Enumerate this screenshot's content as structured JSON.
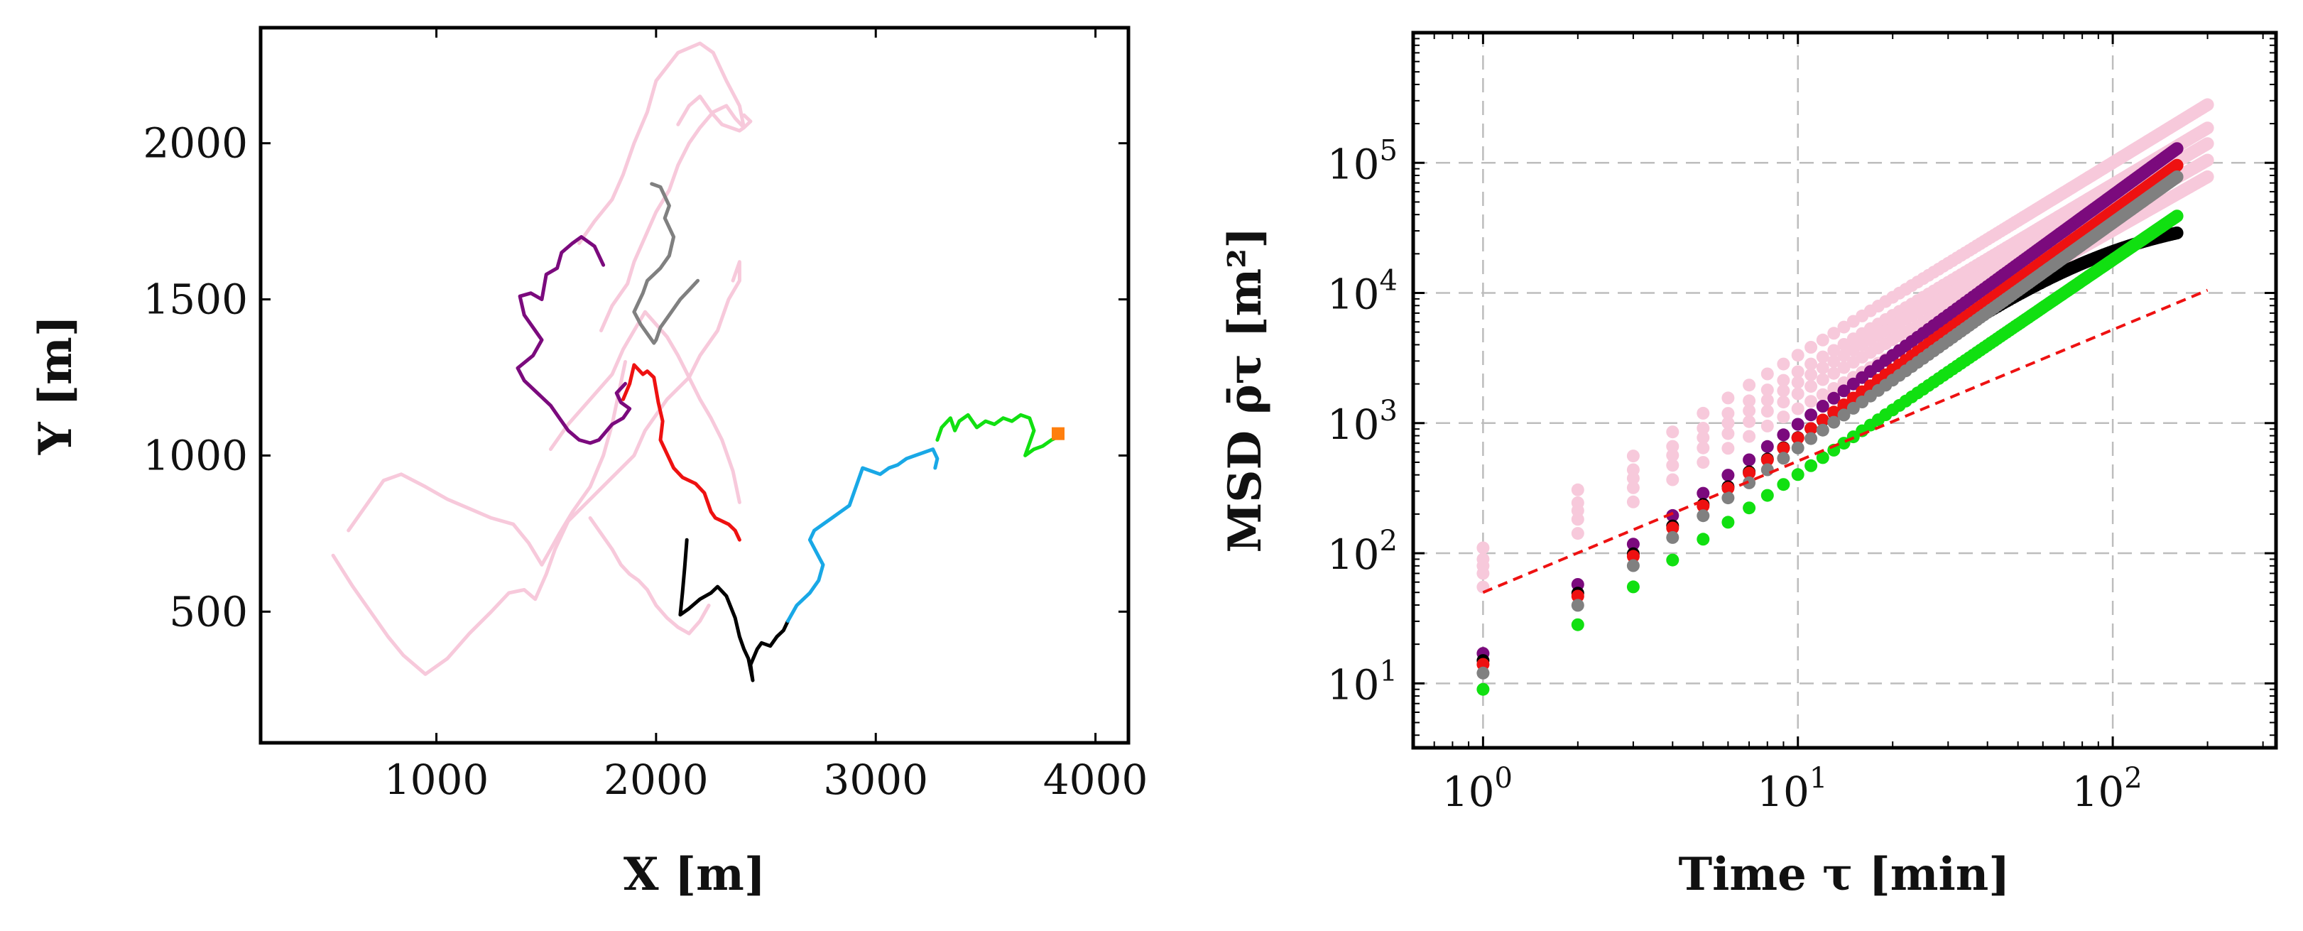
{
  "chart_data": [
    {
      "type": "line",
      "title": "",
      "xlabel": "X [m]",
      "ylabel": "Y [m]",
      "xlim": [
        200,
        4150
      ],
      "ylim": [
        80,
        2370
      ],
      "xticks": [
        1000,
        2000,
        3000,
        4000
      ],
      "yticks": [
        500,
        1000,
        1500,
        2000
      ],
      "xtick_labels": [
        "1000",
        "2000",
        "3000",
        "4000"
      ],
      "ytick_labels": [
        "500",
        "1000",
        "1500",
        "2000"
      ],
      "grid": false,
      "colors": {
        "pink": "#f7c9db",
        "purple": "#7b0a7d",
        "red": "#ee1111",
        "gray": "#808080",
        "black": "#000000",
        "blue": "#19a8e6",
        "green": "#11e011",
        "orange": "#ff7f0e"
      },
      "series": [
        {
          "name": "pink-1",
          "color": "#f7c9db",
          "x": [
            530,
            620,
            700,
            780,
            850,
            950,
            1050,
            1150,
            1250,
            1330,
            1400,
            1450,
            1500,
            1540,
            1600,
            1700,
            1800,
            1900,
            1950,
            2050,
            2150,
            2200,
            2280,
            2330,
            2380,
            2380,
            2350
          ],
          "y": [
            680,
            580,
            500,
            420,
            360,
            300,
            350,
            430,
            500,
            560,
            570,
            540,
            620,
            700,
            790,
            860,
            930,
            1000,
            1080,
            1180,
            1250,
            1320,
            1400,
            1500,
            1560,
            1620,
            1560
          ]
        },
        {
          "name": "pink-2",
          "color": "#f7c9db",
          "x": [
            600,
            700,
            760,
            840,
            950,
            1050,
            1150,
            1250,
            1350,
            1420,
            1480,
            1520,
            1560,
            1620,
            1700,
            1760,
            1800,
            1830,
            1860
          ],
          "y": [
            760,
            860,
            920,
            940,
            900,
            860,
            830,
            800,
            780,
            720,
            650,
            700,
            750,
            820,
            900,
            1000,
            1100,
            1200,
            1300
          ]
        },
        {
          "name": "pink-3",
          "color": "#f7c9db",
          "x": [
            1650,
            1720,
            1800,
            1850,
            1900,
            1960,
            2000,
            2100,
            2200,
            2260,
            2320,
            2380,
            2400,
            2380,
            2300,
            2250,
            2200,
            2150,
            2100
          ],
          "y": [
            1680,
            1750,
            1820,
            1900,
            2000,
            2100,
            2200,
            2290,
            2320,
            2290,
            2200,
            2120,
            2050,
            2040,
            2060,
            2100,
            2150,
            2120,
            2060
          ]
        },
        {
          "name": "pink-4",
          "color": "#f7c9db",
          "x": [
            1750,
            1800,
            1870,
            1900,
            1950,
            2000,
            2060,
            2100,
            2150,
            2200,
            2260,
            2320,
            2360,
            2400,
            2430,
            2400
          ],
          "y": [
            1400,
            1480,
            1550,
            1620,
            1700,
            1780,
            1850,
            1930,
            2000,
            2050,
            2100,
            2120,
            2080,
            2050,
            2070,
            2090
          ]
        },
        {
          "name": "pink-5",
          "color": "#f7c9db",
          "x": [
            1520,
            1600,
            1700,
            1800,
            1850,
            1900,
            1950,
            2000,
            2050,
            2100,
            2150,
            2200,
            2250,
            2300,
            2350,
            2380
          ],
          "y": [
            1020,
            1100,
            1180,
            1260,
            1340,
            1400,
            1460,
            1420,
            1380,
            1320,
            1250,
            1180,
            1120,
            1050,
            950,
            850
          ]
        },
        {
          "name": "pink-6",
          "color": "#f7c9db",
          "x": [
            1700,
            1760,
            1800,
            1840,
            1880,
            1920,
            1960,
            2000,
            2050,
            2100,
            2150,
            2200,
            2240
          ],
          "y": [
            800,
            740,
            700,
            650,
            620,
            600,
            570,
            520,
            480,
            450,
            430,
            470,
            520
          ]
        },
        {
          "name": "purple",
          "color": "#7b0a7d",
          "x": [
            1760,
            1720,
            1660,
            1620,
            1570,
            1550,
            1500,
            1480,
            1430,
            1380,
            1400,
            1450,
            1480,
            1440,
            1370,
            1400,
            1460,
            1520,
            1560,
            1600,
            1650,
            1700,
            1740,
            1800,
            1850,
            1880,
            1840,
            1820,
            1860
          ],
          "y": [
            1610,
            1670,
            1700,
            1680,
            1650,
            1600,
            1580,
            1500,
            1520,
            1510,
            1450,
            1400,
            1370,
            1320,
            1280,
            1240,
            1200,
            1160,
            1120,
            1080,
            1050,
            1040,
            1050,
            1100,
            1120,
            1150,
            1170,
            1200,
            1230
          ]
        },
        {
          "name": "gray",
          "color": "#808080",
          "x": [
            1980,
            2020,
            2060,
            2040,
            2080,
            2060,
            2020,
            1990,
            1960,
            1940,
            1900,
            1930,
            1960,
            1990,
            2000,
            2020,
            2050,
            2080,
            2110,
            2150,
            2190
          ],
          "y": [
            1870,
            1860,
            1800,
            1760,
            1700,
            1640,
            1600,
            1580,
            1560,
            1520,
            1460,
            1420,
            1390,
            1360,
            1370,
            1410,
            1440,
            1470,
            1500,
            1530,
            1560
          ]
        },
        {
          "name": "red",
          "color": "#ee1111",
          "x": [
            1850,
            1880,
            1900,
            1940,
            1960,
            1990,
            2010,
            2030,
            2020,
            2060,
            2080,
            2120,
            2180,
            2220,
            2250,
            2270,
            2300,
            2330,
            2360,
            2380
          ],
          "y": [
            1180,
            1230,
            1290,
            1260,
            1270,
            1250,
            1170,
            1110,
            1050,
            990,
            960,
            930,
            910,
            880,
            820,
            800,
            790,
            780,
            760,
            730
          ]
        },
        {
          "name": "black",
          "color": "#000000",
          "x": [
            2140,
            2130,
            2120,
            2110,
            2150,
            2200,
            2250,
            2280,
            2320,
            2360,
            2380,
            2400,
            2420,
            2440,
            2430,
            2460,
            2480,
            2520,
            2550,
            2580,
            2600
          ],
          "y": [
            730,
            640,
            560,
            490,
            510,
            540,
            560,
            580,
            550,
            480,
            420,
            380,
            350,
            280,
            330,
            380,
            400,
            390,
            420,
            440,
            470
          ]
        },
        {
          "name": "blue",
          "color": "#19a8e6",
          "x": [
            2600,
            2640,
            2700,
            2740,
            2760,
            2730,
            2700,
            2720,
            2760,
            2800,
            2840,
            2880,
            2900,
            2920,
            2940,
            2980,
            3020,
            3060,
            3100,
            3140,
            3180,
            3220,
            3260,
            3280,
            3270
          ],
          "y": [
            470,
            520,
            560,
            600,
            650,
            690,
            730,
            760,
            780,
            800,
            820,
            840,
            880,
            920,
            960,
            950,
            940,
            960,
            970,
            990,
            1000,
            1010,
            1020,
            990,
            960
          ]
        },
        {
          "name": "green",
          "color": "#11e011",
          "x": [
            3280,
            3300,
            3340,
            3360,
            3380,
            3420,
            3460,
            3500,
            3540,
            3580,
            3620,
            3660,
            3700,
            3720,
            3700,
            3680,
            3720,
            3760,
            3800,
            3830
          ],
          "y": [
            1050,
            1090,
            1120,
            1080,
            1110,
            1130,
            1090,
            1110,
            1100,
            1120,
            1110,
            1130,
            1120,
            1080,
            1040,
            1000,
            1020,
            1030,
            1050,
            1060
          ]
        },
        {
          "name": "end-marker",
          "color": "#ff7f0e",
          "marker": "square",
          "x": [
            3830
          ],
          "y": [
            1070
          ]
        }
      ]
    },
    {
      "type": "scatter",
      "title": "",
      "xlabel": "Time τ [min]",
      "ylabel": "MSD ρ̄τ [m²]",
      "xscale": "log",
      "yscale": "log",
      "xlim": [
        0.6,
        330
      ],
      "ylim": [
        3.2,
        1000000
      ],
      "grid": true,
      "xtick_labels": [
        {
          "base": "10",
          "exp": "0"
        },
        {
          "base": "10",
          "exp": "1"
        },
        {
          "base": "10",
          "exp": "2"
        }
      ],
      "ytick_labels": [
        {
          "base": "10",
          "exp": "1"
        },
        {
          "base": "10",
          "exp": "2"
        },
        {
          "base": "10",
          "exp": "3"
        },
        {
          "base": "10",
          "exp": "4"
        },
        {
          "base": "10",
          "exp": "5"
        }
      ],
      "reference_line": {
        "name": "reference-slope",
        "color": "#ee1111",
        "style": "dashed",
        "x": [
          1,
          200
        ],
        "y": [
          50,
          10500
        ]
      },
      "series": [
        {
          "name": "pink-a",
          "color": "#f7c9db",
          "a": 110,
          "b": 1.48,
          "tmax": 200
        },
        {
          "name": "pink-b",
          "color": "#f7c9db",
          "a": 90,
          "b": 1.44,
          "tmax": 200
        },
        {
          "name": "pink-c",
          "color": "#f7c9db",
          "a": 80,
          "b": 1.41,
          "tmax": 200
        },
        {
          "name": "pink-d",
          "color": "#f7c9db",
          "a": 70,
          "b": 1.38,
          "tmax": 200
        },
        {
          "name": "pink-e",
          "color": "#f7c9db",
          "a": 55,
          "b": 1.37,
          "tmax": 200
        },
        {
          "name": "purple",
          "color": "#7b0a7d",
          "a": 17,
          "b": 1.76,
          "tmax": 160
        },
        {
          "name": "black",
          "color": "#000000",
          "a": 15,
          "b": 1.72,
          "tmax": 160,
          "saturate": 42000
        },
        {
          "name": "red",
          "color": "#ee1111",
          "a": 14,
          "b": 1.74,
          "tmax": 160
        },
        {
          "name": "gray",
          "color": "#808080",
          "a": 12,
          "b": 1.73,
          "tmax": 160
        },
        {
          "name": "green",
          "color": "#11e011",
          "a": 9,
          "b": 1.65,
          "tmax": 160
        }
      ]
    }
  ]
}
